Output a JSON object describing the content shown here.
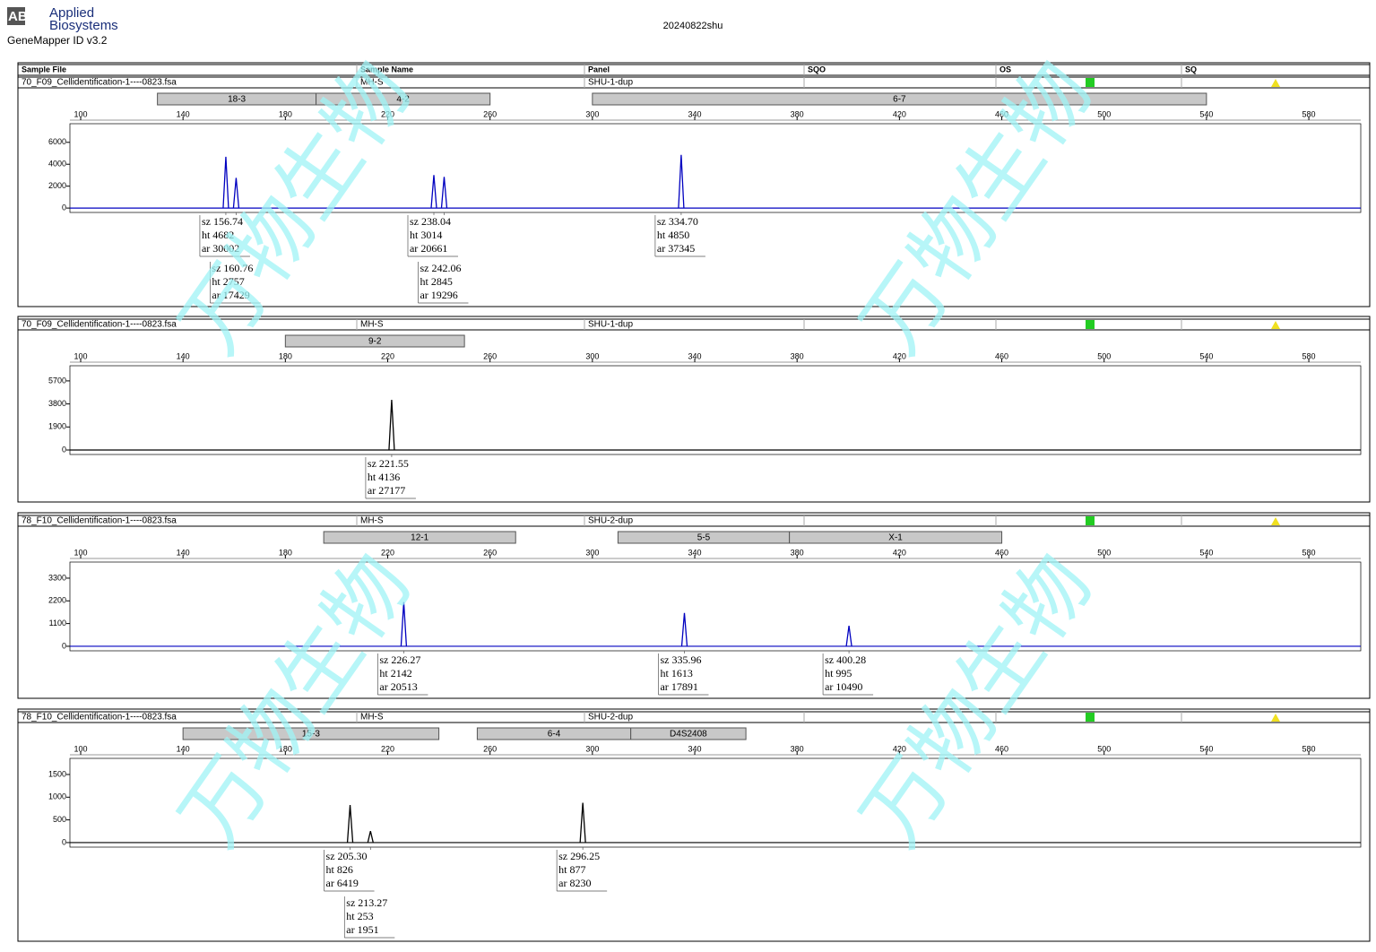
{
  "header": {
    "logo": "AB",
    "brand_line1": "Applied",
    "brand_line2": "Biosystems",
    "software": "GeneMapper ID v3.2",
    "title": "20240822shu"
  },
  "columns": [
    "Sample File",
    "Sample Name",
    "Panel",
    "SQO",
    "OS",
    "SQ"
  ],
  "field_labels": {
    "size": "sz",
    "height": "ht",
    "area": "ar"
  },
  "watermark": "万物生物",
  "chart_data": [
    {
      "type": "electropherogram",
      "sample_file": "70_F09_Cellidentification-1----0823.fsa",
      "sample_name": "MH-S",
      "panel": "SHU-1-dup",
      "color": "#0000c0",
      "bins": [
        {
          "label": "18-3",
          "start": 130,
          "end": 192
        },
        {
          "label": "4-2",
          "start": 192,
          "end": 260
        },
        {
          "label": "6-7",
          "start": 300,
          "end": 540
        }
      ],
      "xlim": [
        95.8,
        600.3
      ],
      "xticks": [
        100,
        140,
        180,
        220,
        260,
        300,
        340,
        380,
        420,
        460,
        500,
        540,
        580
      ],
      "ylim": [
        -400,
        7700
      ],
      "yticks": [
        0,
        2000,
        4000,
        6000
      ],
      "peaks": [
        {
          "size": 156.74,
          "height": 4682,
          "area": 30002
        },
        {
          "size": 160.76,
          "height": 2757,
          "area": 17429
        },
        {
          "size": 238.04,
          "height": 3014,
          "area": 20661
        },
        {
          "size": 242.06,
          "height": 2845,
          "area": 19296
        },
        {
          "size": 334.7,
          "size_label": "334.70",
          "height": 4850,
          "area": 37345
        }
      ]
    },
    {
      "type": "electropherogram",
      "sample_file": "70_F09_Cellidentification-1----0823.fsa",
      "sample_name": "MH-S",
      "panel": "SHU-1-dup",
      "color": "#000000",
      "bins": [
        {
          "label": "9-2",
          "start": 180,
          "end": 250
        }
      ],
      "xlim": [
        95.8,
        600.3
      ],
      "xticks": [
        100,
        140,
        180,
        220,
        260,
        300,
        340,
        380,
        420,
        460,
        500,
        540,
        580
      ],
      "ylim": [
        -370,
        6950
      ],
      "yticks": [
        0,
        1900,
        3800,
        5700
      ],
      "peaks": [
        {
          "size": 221.55,
          "height": 4136,
          "area": 27177
        }
      ]
    },
    {
      "type": "electropherogram",
      "sample_file": "78_F10_Cellidentification-1----0823.fsa",
      "sample_name": "MH-S",
      "panel": "SHU-2-dup",
      "color": "#0000c0",
      "bins": [
        {
          "label": "12-1",
          "start": 195,
          "end": 270
        },
        {
          "label": "5-5",
          "start": 310,
          "end": 377
        },
        {
          "label": "X-1",
          "start": 377,
          "end": 460
        }
      ],
      "xlim": [
        95.8,
        600.3
      ],
      "xticks": [
        100,
        140,
        180,
        220,
        260,
        300,
        340,
        380,
        420,
        460,
        500,
        540,
        580
      ],
      "ylim": [
        -220,
        4080
      ],
      "yticks": [
        0,
        1100,
        2200,
        3300
      ],
      "peaks": [
        {
          "size": 226.27,
          "height": 2142,
          "area": 20513
        },
        {
          "size": 335.96,
          "height": 1613,
          "area": 17891
        },
        {
          "size": 400.28,
          "height": 995,
          "area": 10490
        }
      ]
    },
    {
      "type": "electropherogram",
      "sample_file": "78_F10_Cellidentification-1----0823.fsa",
      "sample_name": "MH-S",
      "panel": "SHU-2-dup",
      "color": "#000000",
      "bins": [
        {
          "label": "15-3",
          "start": 140,
          "end": 240
        },
        {
          "label": "6-4",
          "start": 255,
          "end": 315
        },
        {
          "label": "D4S2408",
          "start": 315,
          "end": 360
        }
      ],
      "xlim": [
        95.8,
        600.3
      ],
      "xticks": [
        100,
        140,
        180,
        220,
        260,
        300,
        340,
        380,
        420,
        460,
        500,
        540,
        580
      ],
      "ylim": [
        -100,
        1855
      ],
      "yticks": [
        0,
        500,
        1000,
        1500
      ],
      "peaks": [
        {
          "size": 205.3,
          "size_label": "205.30",
          "height": 826,
          "area": 6419
        },
        {
          "size": 213.27,
          "height": 253,
          "area": 1951
        },
        {
          "size": 296.25,
          "height": 877,
          "area": 8230
        }
      ]
    }
  ]
}
